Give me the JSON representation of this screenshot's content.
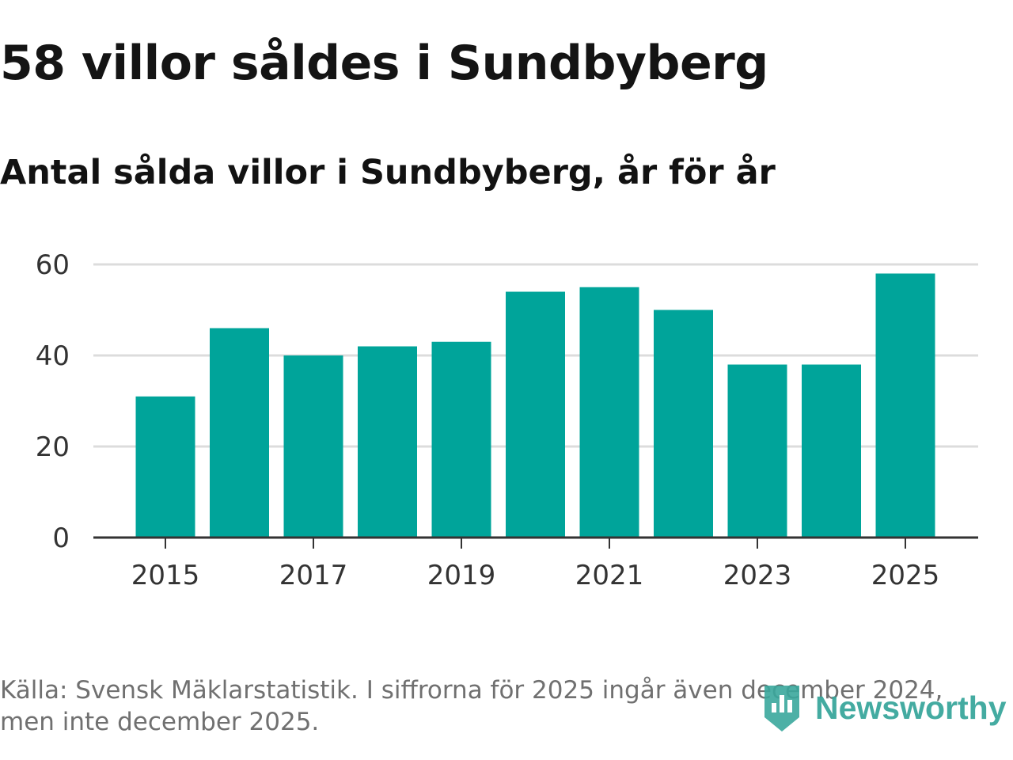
{
  "title": "58 villor såldes i Sundbyberg",
  "subtitle": "Antal sålda villor i Sundbyberg, år för år",
  "source_line1": "Källa: Svensk Mäklarstatistik. I siffrorna för 2025 ingår även december 2024,",
  "source_line2": "men inte december 2025.",
  "brand": "Newsworthy",
  "colors": {
    "bar": "#00a49a",
    "brand": "#3aa79c"
  },
  "chart_data": {
    "type": "bar",
    "title": "Antal sålda villor i Sundbyberg, år för år",
    "xlabel": "",
    "ylabel": "",
    "categories": [
      "2015",
      "2016",
      "2017",
      "2018",
      "2019",
      "2020",
      "2021",
      "2022",
      "2023",
      "2024",
      "2025"
    ],
    "values": [
      31,
      46,
      40,
      42,
      43,
      54,
      55,
      50,
      38,
      38,
      58
    ],
    "ylim": [
      0,
      60
    ],
    "yticks": [
      0,
      20,
      40,
      60
    ],
    "xtick_labels": [
      "2015",
      "2017",
      "2019",
      "2021",
      "2023",
      "2025"
    ],
    "grid": true
  }
}
